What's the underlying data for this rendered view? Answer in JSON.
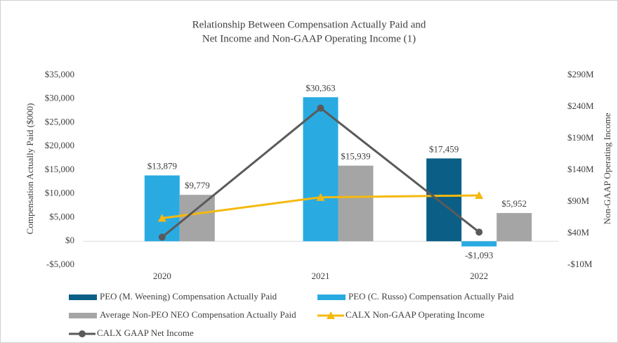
{
  "chart_data": {
    "type": "bar",
    "title": [
      "Relationship Between Compensation Actually Paid and",
      "Net Income and Non-GAAP Operating Income (1)"
    ],
    "y_label": "Compensation Actually Paid ($000)",
    "y2_label": "Non-GAAP Operating Income",
    "categories": [
      "2020",
      "2021",
      "2022"
    ],
    "ylim": [
      -5000,
      35000
    ],
    "yticks": [
      {
        "value": -5000,
        "label": "-$5,000"
      },
      {
        "value": 0,
        "label": "$0"
      },
      {
        "value": 5000,
        "label": "$5,000"
      },
      {
        "value": 10000,
        "label": "$10,000"
      },
      {
        "value": 15000,
        "label": "$15,000"
      },
      {
        "value": 20000,
        "label": "$20,000"
      },
      {
        "value": 25000,
        "label": "$25,000"
      },
      {
        "value": 30000,
        "label": "$30,000"
      },
      {
        "value": 35000,
        "label": "$35,000"
      }
    ],
    "y2lim": [
      -10,
      290
    ],
    "y2ticks": [
      {
        "value": -10,
        "label": "-$10M"
      },
      {
        "value": 40,
        "label": "$40M"
      },
      {
        "value": 90,
        "label": "$90M"
      },
      {
        "value": 140,
        "label": "$140M"
      },
      {
        "value": 190,
        "label": "$190M"
      },
      {
        "value": 240,
        "label": "$240M"
      },
      {
        "value": 290,
        "label": "$290M"
      }
    ],
    "series": [
      {
        "name": "PEO (M. Weening) Compensation Actually Paid",
        "type": "bar",
        "color": "#0b5f86",
        "values": [
          null,
          null,
          17459
        ],
        "value_labels": [
          null,
          null,
          "$17,459"
        ]
      },
      {
        "name": "PEO (C. Russo) Compensation Actually Paid",
        "type": "bar",
        "color": "#29abe2",
        "values": [
          13879,
          30363,
          -1093
        ],
        "value_labels": [
          "$13,879",
          "$30,363",
          "-$1,093"
        ]
      },
      {
        "name": "Average Non-PEO NEO Compensation Actually Paid",
        "type": "bar",
        "color": "#a5a5a5",
        "values": [
          9779,
          15939,
          5952
        ],
        "value_labels": [
          "$9,779",
          "$15,939",
          "$5,952"
        ]
      },
      {
        "name": "CALX Non-GAAP Operating Income",
        "type": "line",
        "axis": "y2",
        "color": "#f5b90f",
        "marker": "triangle",
        "values": [
          64,
          97,
          100
        ]
      },
      {
        "name": "CALX GAAP Net Income",
        "type": "line",
        "axis": "y2",
        "color": "#5a5a5a",
        "marker": "circle",
        "values": [
          34,
          238,
          42
        ]
      }
    ]
  }
}
